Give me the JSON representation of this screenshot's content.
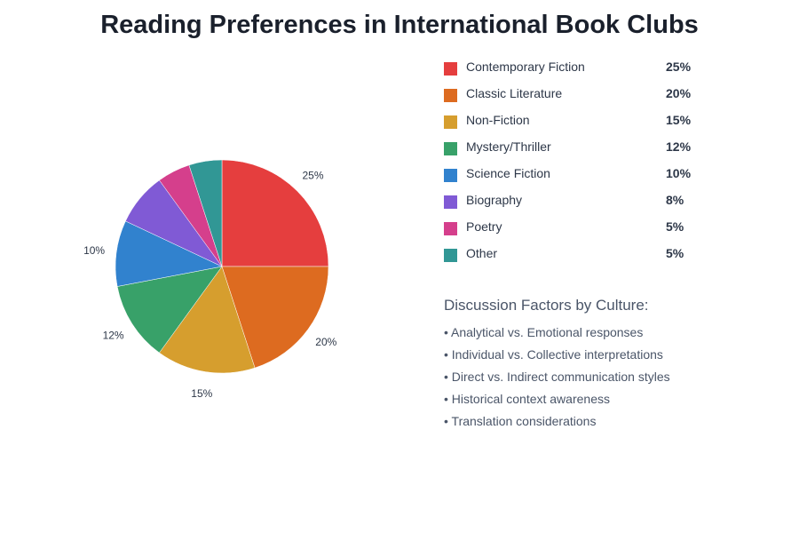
{
  "chart_data": {
    "type": "pie",
    "title": "Reading Preferences in International Book Clubs",
    "slices": [
      {
        "label": "Contemporary Fiction",
        "value": 25,
        "pct_label": "25%",
        "color": "#e53e3e"
      },
      {
        "label": "Classic Literature",
        "value": 20,
        "pct_label": "20%",
        "color": "#dd6b20"
      },
      {
        "label": "Non-Fiction",
        "value": 15,
        "pct_label": "15%",
        "color": "#d69e2e"
      },
      {
        "label": "Mystery/Thriller",
        "value": 12,
        "pct_label": "12%",
        "color": "#38a169"
      },
      {
        "label": "Science Fiction",
        "value": 10,
        "pct_label": "10%",
        "color": "#3182ce"
      },
      {
        "label": "Biography",
        "value": 8,
        "pct_label": "8%",
        "color": "#805ad5"
      },
      {
        "label": "Poetry",
        "value": 5,
        "pct_label": "5%",
        "color": "#d53f8c"
      },
      {
        "label": "Other",
        "value": 5,
        "pct_label": "5%",
        "color": "#319795"
      }
    ],
    "outer_labels": [
      "25%",
      "20%",
      "15%",
      "12%",
      "10%"
    ]
  },
  "discussion": {
    "title": "Discussion Factors by Culture:",
    "items": [
      "• Analytical vs. Emotional responses",
      "• Individual vs. Collective interpretations",
      "• Direct vs. Indirect communication styles",
      "• Historical context awareness",
      "• Translation considerations"
    ]
  }
}
